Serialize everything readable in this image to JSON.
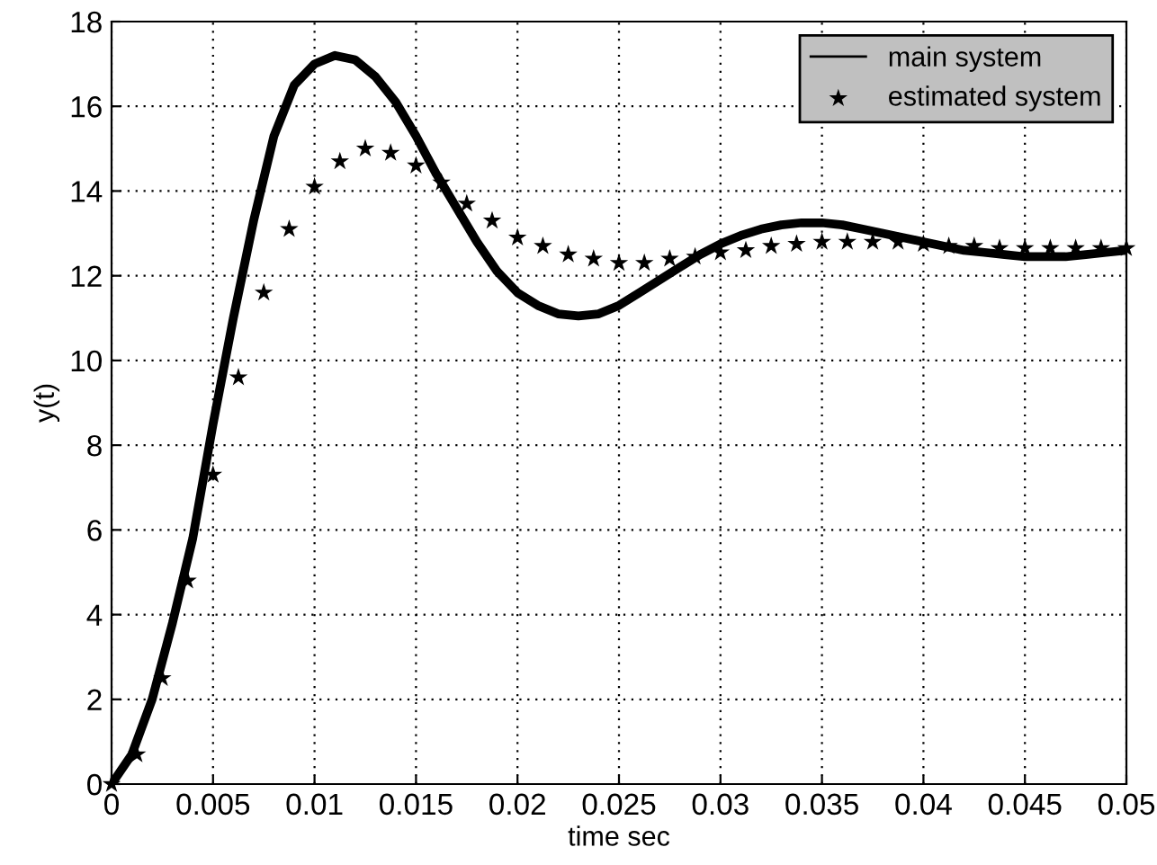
{
  "chart_data": {
    "type": "line",
    "xlabel": "time sec",
    "ylabel": "y(t)",
    "xlim": [
      0,
      0.05
    ],
    "ylim": [
      0,
      18
    ],
    "xticks": [
      0,
      0.005,
      0.01,
      0.015,
      0.02,
      0.025,
      0.03,
      0.035,
      0.04,
      0.045,
      0.05
    ],
    "yticks": [
      0,
      2,
      4,
      6,
      8,
      10,
      12,
      14,
      16,
      18
    ],
    "grid": true,
    "legend": "top right",
    "series": [
      {
        "name": "main system",
        "type": "line",
        "color": "#000000",
        "marker": "none",
        "line_style": "solid",
        "x": [
          0,
          0.001,
          0.002,
          0.003,
          0.004,
          0.005,
          0.006,
          0.007,
          0.008,
          0.009,
          0.01,
          0.011,
          0.012,
          0.013,
          0.014,
          0.015,
          0.016,
          0.017,
          0.018,
          0.019,
          0.02,
          0.021,
          0.022,
          0.023,
          0.024,
          0.025,
          0.026,
          0.027,
          0.028,
          0.029,
          0.03,
          0.031,
          0.032,
          0.033,
          0.034,
          0.035,
          0.036,
          0.037,
          0.038,
          0.039,
          0.04,
          0.041,
          0.042,
          0.043,
          0.044,
          0.045,
          0.046,
          0.047,
          0.048,
          0.049,
          0.05
        ],
        "values": [
          0,
          0.7,
          2.0,
          3.8,
          5.8,
          8.5,
          11.0,
          13.3,
          15.3,
          16.5,
          17.0,
          17.2,
          17.1,
          16.7,
          16.1,
          15.3,
          14.4,
          13.6,
          12.8,
          12.1,
          11.6,
          11.3,
          11.1,
          11.05,
          11.1,
          11.3,
          11.6,
          11.9,
          12.2,
          12.5,
          12.75,
          12.95,
          13.1,
          13.2,
          13.25,
          13.25,
          13.2,
          13.1,
          13.0,
          12.9,
          12.8,
          12.7,
          12.6,
          12.55,
          12.5,
          12.45,
          12.45,
          12.45,
          12.5,
          12.55,
          12.6
        ]
      },
      {
        "name": "estimated system",
        "type": "scatter",
        "color": "#000000",
        "marker": "star",
        "x": [
          0,
          0.00125,
          0.0025,
          0.00375,
          0.005,
          0.00625,
          0.0075,
          0.00875,
          0.01,
          0.01125,
          0.0125,
          0.01375,
          0.015,
          0.01625,
          0.0175,
          0.01875,
          0.02,
          0.02125,
          0.0225,
          0.02375,
          0.025,
          0.02625,
          0.0275,
          0.02875,
          0.03,
          0.03125,
          0.0325,
          0.03375,
          0.035,
          0.03625,
          0.0375,
          0.03875,
          0.04,
          0.04125,
          0.0425,
          0.04375,
          0.045,
          0.04625,
          0.0475,
          0.04875,
          0.05
        ],
        "values": [
          0,
          0.7,
          2.5,
          4.8,
          7.3,
          9.6,
          11.6,
          13.1,
          14.1,
          14.7,
          15.0,
          14.9,
          14.6,
          14.2,
          13.7,
          13.3,
          12.9,
          12.7,
          12.5,
          12.4,
          12.3,
          12.3,
          12.4,
          12.45,
          12.55,
          12.6,
          12.7,
          12.75,
          12.8,
          12.8,
          12.8,
          12.8,
          12.75,
          12.7,
          12.7,
          12.65,
          12.65,
          12.65,
          12.65,
          12.65,
          12.65
        ]
      }
    ]
  }
}
